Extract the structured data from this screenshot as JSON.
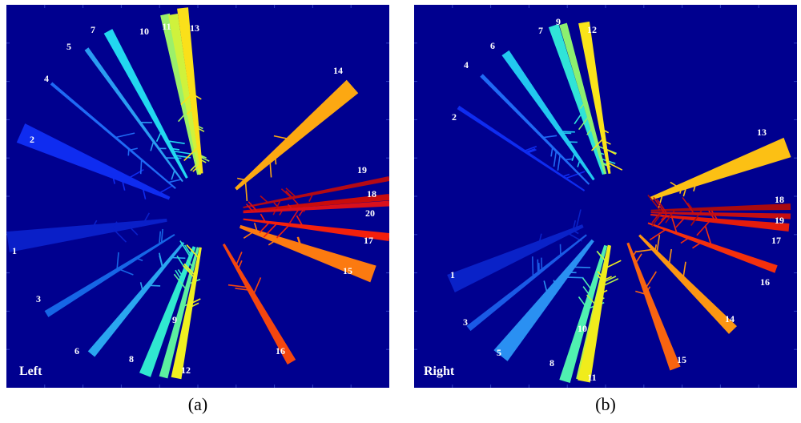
{
  "panels": [
    {
      "side_label": "Left",
      "caption": "(a)",
      "branches": [
        {
          "label": "1",
          "color": "#0a1fc8"
        },
        {
          "label": "2",
          "color": "#0f2cf0"
        },
        {
          "label": "3",
          "color": "#1666e6"
        },
        {
          "label": "4",
          "color": "#1f6af5"
        },
        {
          "label": "5",
          "color": "#2a9cf2"
        },
        {
          "label": "6",
          "color": "#2aa6f0"
        },
        {
          "label": "7",
          "color": "#22d8f0"
        },
        {
          "label": "8",
          "color": "#30e8d0"
        },
        {
          "label": "9",
          "color": "#5cf0a0"
        },
        {
          "label": "10",
          "color": "#9cf06a"
        },
        {
          "label": "11",
          "color": "#cff23c"
        },
        {
          "label": "12",
          "color": "#f0f020"
        },
        {
          "label": "13",
          "color": "#fae01a"
        },
        {
          "label": "14",
          "color": "#fca812"
        },
        {
          "label": "15",
          "color": "#fc7a10"
        },
        {
          "label": "16",
          "color": "#f4460e"
        },
        {
          "label": "17",
          "color": "#f4200c"
        },
        {
          "label": "18",
          "color": "#c80c0c"
        },
        {
          "label": "19",
          "color": "#b40a14"
        },
        {
          "label": "20",
          "color": "#d8101c"
        }
      ]
    },
    {
      "side_label": "Right",
      "caption": "(b)",
      "branches": [
        {
          "label": "1",
          "color": "#0a22c8"
        },
        {
          "label": "2",
          "color": "#0f2cf0"
        },
        {
          "label": "3",
          "color": "#1a5ae6"
        },
        {
          "label": "4",
          "color": "#1f6af5"
        },
        {
          "label": "5",
          "color": "#2a90f2"
        },
        {
          "label": "6",
          "color": "#22c8f0"
        },
        {
          "label": "7",
          "color": "#30e4d8"
        },
        {
          "label": "8",
          "color": "#50f0b0"
        },
        {
          "label": "9",
          "color": "#8cf070"
        },
        {
          "label": "10",
          "color": "#b4f24c"
        },
        {
          "label": "11",
          "color": "#f0ec1c"
        },
        {
          "label": "12",
          "color": "#fae41a"
        },
        {
          "label": "13",
          "color": "#fcc014"
        },
        {
          "label": "14",
          "color": "#fc9612"
        },
        {
          "label": "15",
          "color": "#f86410"
        },
        {
          "label": "16",
          "color": "#f4300c"
        },
        {
          "label": "17",
          "color": "#e41c0c"
        },
        {
          "label": "18",
          "color": "#a80a10"
        },
        {
          "label": "19",
          "color": "#c40e12"
        }
      ]
    }
  ],
  "background_color": "#00008f"
}
